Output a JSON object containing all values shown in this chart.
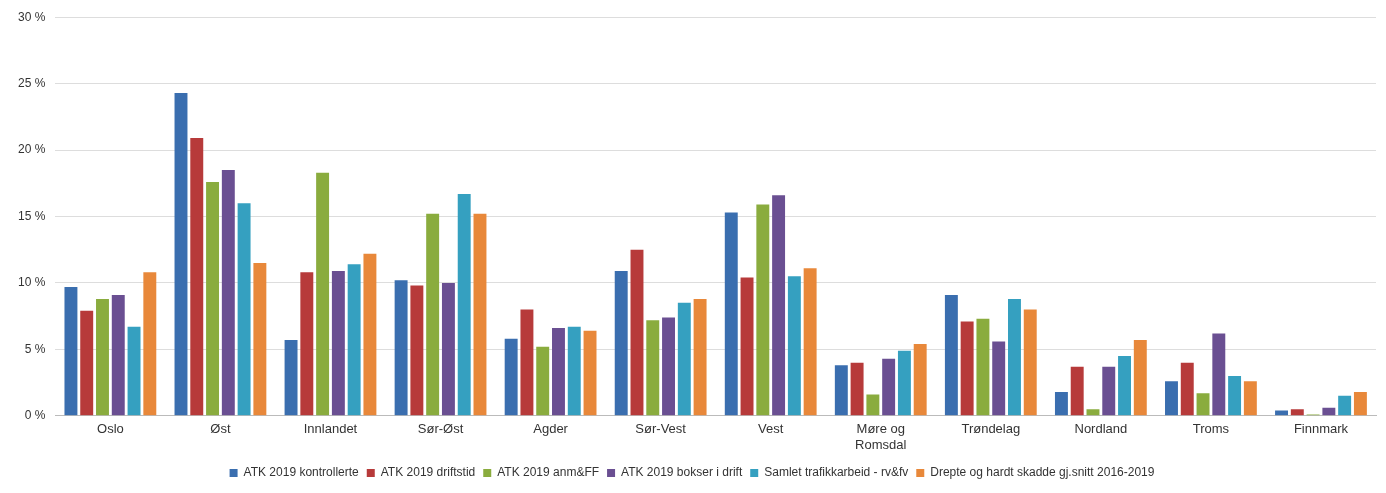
{
  "chart_data": {
    "type": "bar",
    "categories": [
      "Oslo",
      "Øst",
      "Innlandet",
      "Sør-Øst",
      "Agder",
      "Sør-Vest",
      "Vest",
      "Møre og Romsdal",
      "Trøndelag",
      "Nordland",
      "Troms",
      "Finnmark"
    ],
    "series": [
      {
        "name": "ATK 2019 kontrollerte",
        "color": "#3a6eaf",
        "values": [
          9.7,
          24.3,
          5.7,
          10.2,
          5.8,
          10.9,
          15.3,
          3.8,
          9.1,
          1.8,
          2.6,
          0.4
        ]
      },
      {
        "name": "ATK 2019 driftstid",
        "color": "#b73a3a",
        "values": [
          7.9,
          20.9,
          10.8,
          9.8,
          8.0,
          12.5,
          10.4,
          4.0,
          7.1,
          3.7,
          4.0,
          0.5
        ]
      },
      {
        "name": "ATK 2019 anm&FF",
        "color": "#8aac3e",
        "values": [
          8.8,
          17.6,
          18.3,
          15.2,
          5.2,
          7.2,
          15.9,
          1.6,
          7.3,
          0.5,
          1.7,
          0.1
        ]
      },
      {
        "name": "ATK 2019 bokser i drift",
        "color": "#6a4f92",
        "values": [
          9.1,
          18.5,
          10.9,
          10.0,
          6.6,
          7.4,
          16.6,
          4.3,
          5.6,
          3.7,
          6.2,
          0.6
        ]
      },
      {
        "name": "Samlet trafikkarbeid - rv&fv",
        "color": "#35a0c0",
        "values": [
          6.7,
          16.0,
          11.4,
          16.7,
          6.7,
          8.5,
          10.5,
          4.9,
          8.8,
          4.5,
          3.0,
          1.5
        ]
      },
      {
        "name": "Drepte og hardt skadde gj.snitt 2016-2019",
        "color": "#e8883a",
        "values": [
          10.8,
          11.5,
          12.2,
          15.2,
          6.4,
          8.8,
          11.1,
          5.4,
          8.0,
          5.7,
          2.6,
          1.8
        ]
      }
    ],
    "ylim": [
      0,
      30
    ],
    "yticks": [
      {
        "value": 0,
        "label": "0 %"
      },
      {
        "value": 5,
        "label": "5 %"
      },
      {
        "value": 10,
        "label": "10 %"
      },
      {
        "value": 15,
        "label": "15 %"
      },
      {
        "value": 20,
        "label": "20 %"
      },
      {
        "value": 25,
        "label": "25 %"
      },
      {
        "value": 30,
        "label": "30 %"
      }
    ],
    "grid": "y",
    "legend": "bottom"
  }
}
